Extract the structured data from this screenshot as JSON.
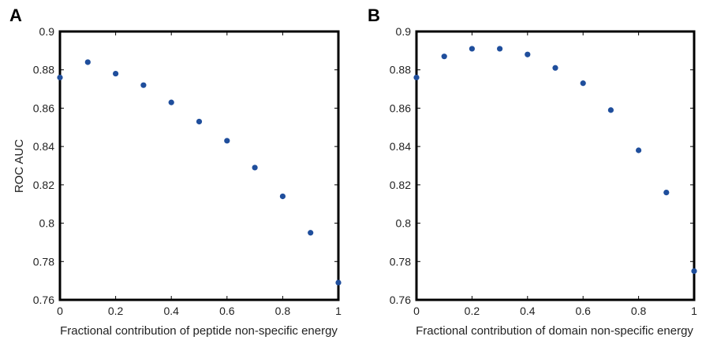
{
  "chart_data": [
    {
      "type": "scatter",
      "panel_label": "A",
      "xlabel": "Fractional contribution of peptide non-specific energy",
      "ylabel": "ROC AUC",
      "xlim": [
        0,
        1
      ],
      "ylim": [
        0.76,
        0.9
      ],
      "xticks": [
        "0",
        "0.2",
        "0.4",
        "0.6",
        "0.8",
        "1"
      ],
      "yticks": [
        "0.76",
        "0.78",
        "0.8",
        "0.82",
        "0.84",
        "0.86",
        "0.88",
        "0.9"
      ],
      "grid": false,
      "marker_color": "#1f4e9c",
      "x": [
        0,
        0.1,
        0.2,
        0.3,
        0.4,
        0.5,
        0.6,
        0.7,
        0.8,
        0.9,
        1.0
      ],
      "y": [
        0.876,
        0.884,
        0.878,
        0.872,
        0.863,
        0.853,
        0.843,
        0.829,
        0.814,
        0.795,
        0.769
      ]
    },
    {
      "type": "scatter",
      "panel_label": "B",
      "xlabel": "Fractional contribution of domain non-specific energy",
      "ylabel": "",
      "xlim": [
        0,
        1
      ],
      "ylim": [
        0.76,
        0.9
      ],
      "xticks": [
        "0",
        "0.2",
        "0.4",
        "0.6",
        "0.8",
        "1"
      ],
      "yticks": [
        "0.76",
        "0.78",
        "0.8",
        "0.82",
        "0.84",
        "0.86",
        "0.88",
        "0.9"
      ],
      "grid": false,
      "marker_color": "#1f4e9c",
      "x": [
        0,
        0.1,
        0.2,
        0.3,
        0.4,
        0.5,
        0.6,
        0.7,
        0.8,
        0.9,
        1.0
      ],
      "y": [
        0.876,
        0.887,
        0.891,
        0.891,
        0.888,
        0.881,
        0.873,
        0.859,
        0.838,
        0.816,
        0.775
      ]
    }
  ]
}
